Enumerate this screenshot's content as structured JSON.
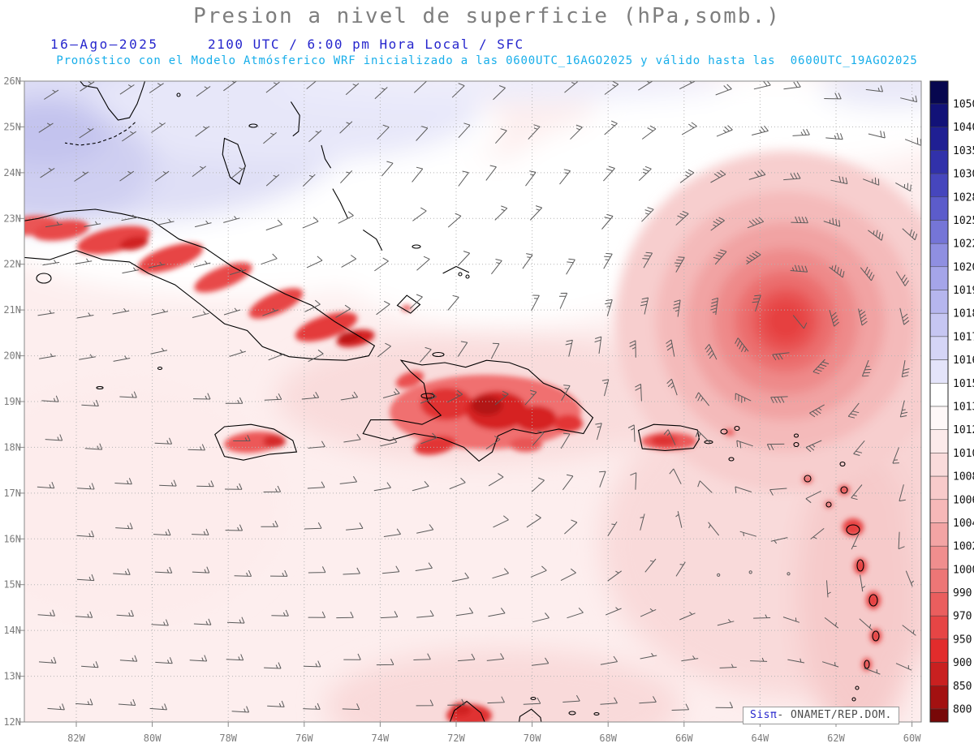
{
  "title": "Presion a nivel de superficie (hPa,somb.)",
  "header": {
    "date": "16—Ago—2025",
    "time": "2100 UTC / 6:00 pm Hora Local / SFC",
    "forecast": "Pronóstico con el Modelo Atmósferico WRF inicializado a las 0600UTC_16AGO2025 y válido hasta las  0600UTC_19AGO2025"
  },
  "map": {
    "lat_labels": [
      "26N",
      "25N",
      "24N",
      "23N",
      "22N",
      "21N",
      "20N",
      "19N",
      "18N",
      "17N",
      "16N",
      "15N",
      "14N",
      "13N",
      "12N"
    ],
    "lon_labels": [
      "82W",
      "80W",
      "78W",
      "76W",
      "74W",
      "72W",
      "70W",
      "68W",
      "66W",
      "64W",
      "62W",
      "60W"
    ]
  },
  "colorbar": {
    "values": [
      1050,
      1040,
      1035,
      1030,
      1028,
      1025,
      1022,
      1020,
      1019,
      1018,
      1017,
      1016,
      1015,
      1013,
      1012,
      1010,
      1008,
      1006,
      1004,
      1002,
      1000,
      990,
      970,
      950,
      900,
      850,
      800
    ],
    "colors": [
      "#07074f",
      "#121278",
      "#1f1f93",
      "#3131aa",
      "#4646bd",
      "#5c5ccb",
      "#7575d7",
      "#8f8fe1",
      "#a5a5e9",
      "#b6b6ee",
      "#c6c6f2",
      "#d5d5f6",
      "#e4e4fa",
      "#ffffff",
      "#fef8f8",
      "#fceaea",
      "#fadbdb",
      "#f8caca",
      "#f6b8b8",
      "#f3a4a4",
      "#f08e8e",
      "#ed7676",
      "#ea5e5e",
      "#e64545",
      "#e22c2c",
      "#c92020",
      "#a31111",
      "#780808"
    ]
  },
  "branding": {
    "app": "Sisπ",
    "org": "- ONAMET/REP.DOM."
  },
  "colors": {
    "title": "#7e7e7e",
    "datetime": "#2626cd",
    "forecast": "#17aeea",
    "grid": "#b3b3b3",
    "coast": "#000000",
    "barb": "#5a5a5a",
    "axis_label": "#7d7d7d",
    "colorbar_label": "#111111",
    "frame": "#888888"
  }
}
